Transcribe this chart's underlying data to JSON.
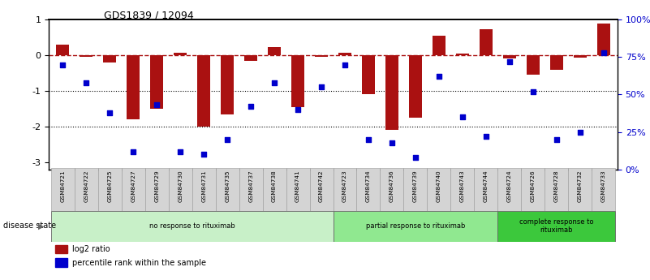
{
  "title": "GDS1839 / 12094",
  "samples": [
    "GSM84721",
    "GSM84722",
    "GSM84725",
    "GSM84727",
    "GSM84729",
    "GSM84730",
    "GSM84731",
    "GSM84735",
    "GSM84737",
    "GSM84738",
    "GSM84741",
    "GSM84742",
    "GSM84723",
    "GSM84734",
    "GSM84736",
    "GSM84739",
    "GSM84740",
    "GSM84743",
    "GSM84744",
    "GSM84724",
    "GSM84726",
    "GSM84728",
    "GSM84732",
    "GSM84733"
  ],
  "log2_ratio": [
    0.3,
    -0.05,
    -0.2,
    -1.8,
    -1.5,
    0.07,
    -2.0,
    -1.65,
    -0.15,
    0.22,
    -1.45,
    -0.05,
    0.07,
    -1.1,
    -2.1,
    -1.75,
    0.55,
    0.05,
    0.72,
    -0.1,
    -0.55,
    -0.4,
    -0.07,
    0.9
  ],
  "percentile": [
    70,
    58,
    38,
    12,
    43,
    12,
    10,
    20,
    42,
    58,
    40,
    55,
    70,
    20,
    18,
    8,
    62,
    35,
    22,
    72,
    52,
    20,
    25,
    78
  ],
  "groups": [
    {
      "label": "no response to rituximab",
      "start": 0,
      "end": 12,
      "color": "#c8f0c8"
    },
    {
      "label": "partial response to rituximab",
      "start": 12,
      "end": 19,
      "color": "#90e890"
    },
    {
      "label": "complete response to\nrituximab",
      "start": 19,
      "end": 24,
      "color": "#3cc83c"
    }
  ],
  "bar_color": "#aa1111",
  "dot_color": "#0000cc",
  "ylim_left": [
    -3.2,
    1.0
  ],
  "ylim_right": [
    0,
    100
  ],
  "yticks_left": [
    1,
    0,
    -1,
    -2,
    -3
  ],
  "yticks_right": [
    0,
    25,
    50,
    75,
    100
  ],
  "ytick_labels_right": [
    "0%",
    "25%",
    "50%",
    "75%",
    "100%"
  ],
  "dotted_lines": [
    -1,
    -2
  ],
  "background_color": "#ffffff",
  "legend_items": [
    {
      "label": "log2 ratio",
      "color": "#aa1111"
    },
    {
      "label": "percentile rank within the sample",
      "color": "#0000cc"
    }
  ],
  "disease_state_label": "disease state"
}
